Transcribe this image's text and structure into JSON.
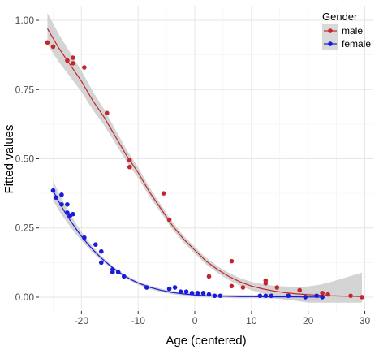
{
  "chart_data": {
    "type": "scatter",
    "title": "",
    "xlabel": "Age (centered)",
    "ylabel": "Fitted values",
    "xlim": [
      -27.5,
      31.5
    ],
    "ylim": [
      -0.05,
      1.05
    ],
    "xticks": [
      -20,
      -10,
      0,
      10,
      20,
      30
    ],
    "yticks": [
      0.0,
      0.25,
      0.5,
      0.75,
      1.0
    ],
    "xtick_labels": [
      "-20",
      "-10",
      "0",
      "10",
      "20",
      "30"
    ],
    "ytick_labels": [
      "0.00",
      "0.25",
      "0.50",
      "0.75",
      "1.00"
    ],
    "grid": true,
    "legend": {
      "title": "Gender",
      "placement": "top-right"
    },
    "series": [
      {
        "name": "male",
        "color": "#c1272d",
        "band_color": "#cccccc",
        "points": [
          [
            -26,
            0.92
          ],
          [
            -25,
            0.905
          ],
          [
            -22.5,
            0.855
          ],
          [
            -21.5,
            0.865
          ],
          [
            -21.5,
            0.845
          ],
          [
            -19.5,
            0.83
          ],
          [
            -15.5,
            0.665
          ],
          [
            -11.5,
            0.495
          ],
          [
            -11.5,
            0.47
          ],
          [
            -5.5,
            0.375
          ],
          [
            -4.5,
            0.28
          ],
          [
            2.5,
            0.075
          ],
          [
            6.5,
            0.13
          ],
          [
            6.5,
            0.04
          ],
          [
            8.5,
            0.035
          ],
          [
            12.5,
            0.06
          ],
          [
            12.5,
            0.05
          ],
          [
            14.5,
            0.035
          ],
          [
            18.5,
            0.025
          ],
          [
            22.5,
            0.015
          ],
          [
            23.5,
            0.01
          ],
          [
            27.5,
            0.005
          ],
          [
            29.5,
            0.0
          ]
        ],
        "fit": [
          [
            -26,
            0.97
          ],
          [
            -24,
            0.9
          ],
          [
            -22,
            0.84
          ],
          [
            -20,
            0.78
          ],
          [
            -18,
            0.71
          ],
          [
            -16,
            0.65
          ],
          [
            -14,
            0.58
          ],
          [
            -12,
            0.51
          ],
          [
            -10,
            0.45
          ],
          [
            -8,
            0.38
          ],
          [
            -6,
            0.32
          ],
          [
            -4,
            0.26
          ],
          [
            -2,
            0.21
          ],
          [
            0,
            0.17
          ],
          [
            2,
            0.13
          ],
          [
            4,
            0.1
          ],
          [
            6,
            0.075
          ],
          [
            8,
            0.055
          ],
          [
            10,
            0.04
          ],
          [
            12,
            0.03
          ],
          [
            14,
            0.022
          ],
          [
            16,
            0.016
          ],
          [
            18,
            0.012
          ],
          [
            20,
            0.009
          ],
          [
            22,
            0.007
          ],
          [
            24,
            0.005
          ],
          [
            26,
            0.004
          ],
          [
            28,
            0.003
          ],
          [
            29.5,
            0.002
          ]
        ]
      },
      {
        "name": "female",
        "color": "#1a1adb",
        "band_color": "#cccccc",
        "points": [
          [
            -25,
            0.385
          ],
          [
            -24.5,
            0.36
          ],
          [
            -23.5,
            0.37
          ],
          [
            -23.5,
            0.335
          ],
          [
            -22.5,
            0.335
          ],
          [
            -22.5,
            0.305
          ],
          [
            -22,
            0.295
          ],
          [
            -21.5,
            0.3
          ],
          [
            -19.5,
            0.215
          ],
          [
            -17.5,
            0.19
          ],
          [
            -16.5,
            0.165
          ],
          [
            -16.5,
            0.125
          ],
          [
            -14.5,
            0.1
          ],
          [
            -14.5,
            0.09
          ],
          [
            -13.5,
            0.09
          ],
          [
            -12.5,
            0.075
          ],
          [
            -8.5,
            0.035
          ],
          [
            -4.5,
            0.03
          ],
          [
            -3.5,
            0.035
          ],
          [
            -2.5,
            0.02
          ],
          [
            -1.5,
            0.02
          ],
          [
            -0.5,
            0.015
          ],
          [
            0.5,
            0.015
          ],
          [
            1.5,
            0.015
          ],
          [
            2.5,
            0.01
          ],
          [
            3.5,
            0.005
          ],
          [
            4.5,
            0.005
          ],
          [
            11.5,
            0.005
          ],
          [
            12.5,
            0.005
          ],
          [
            13.5,
            0.005
          ],
          [
            16.5,
            0.005
          ],
          [
            19.5,
            0.0
          ],
          [
            21.5,
            0.005
          ],
          [
            22.5,
            0.0
          ]
        ],
        "fit": [
          [
            -25,
            0.385
          ],
          [
            -24,
            0.345
          ],
          [
            -23,
            0.31
          ],
          [
            -22,
            0.278
          ],
          [
            -21,
            0.248
          ],
          [
            -20,
            0.22
          ],
          [
            -19,
            0.195
          ],
          [
            -18,
            0.172
          ],
          [
            -17,
            0.151
          ],
          [
            -16,
            0.132
          ],
          [
            -15,
            0.115
          ],
          [
            -14,
            0.099
          ],
          [
            -13,
            0.085
          ],
          [
            -12,
            0.072
          ],
          [
            -11,
            0.061
          ],
          [
            -10,
            0.051
          ],
          [
            -8,
            0.036
          ],
          [
            -6,
            0.025
          ],
          [
            -4,
            0.017
          ],
          [
            -2,
            0.012
          ],
          [
            0,
            0.008
          ],
          [
            2,
            0.005
          ],
          [
            4,
            0.004
          ],
          [
            6,
            0.003
          ],
          [
            8,
            0.002
          ],
          [
            10,
            0.002
          ],
          [
            14,
            0.001
          ],
          [
            18,
            0.001
          ],
          [
            22.5,
            0.0
          ]
        ]
      }
    ]
  }
}
